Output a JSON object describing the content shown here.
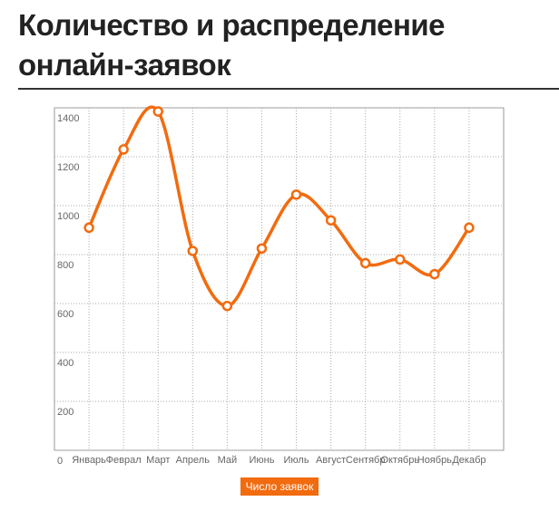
{
  "chart_data": {
    "type": "line",
    "title": "Количество и распределение онлайн-заявок",
    "categories": [
      "Январь",
      "Феврал",
      "Март",
      "Апрель",
      "Май",
      "Июнь",
      "Июль",
      "Август",
      "Сентябр",
      "Октябрь",
      "Ноябрь",
      "Декабр"
    ],
    "series": [
      {
        "name": "Число заявок",
        "color": "#f26b0f",
        "values": [
          910,
          1230,
          1385,
          815,
          590,
          825,
          1045,
          940,
          765,
          780,
          720,
          910
        ]
      }
    ],
    "ylim": [
      0,
      1400
    ],
    "yticks": [
      0,
      200,
      400,
      600,
      800,
      1000,
      1200,
      1400
    ],
    "grid": true
  }
}
